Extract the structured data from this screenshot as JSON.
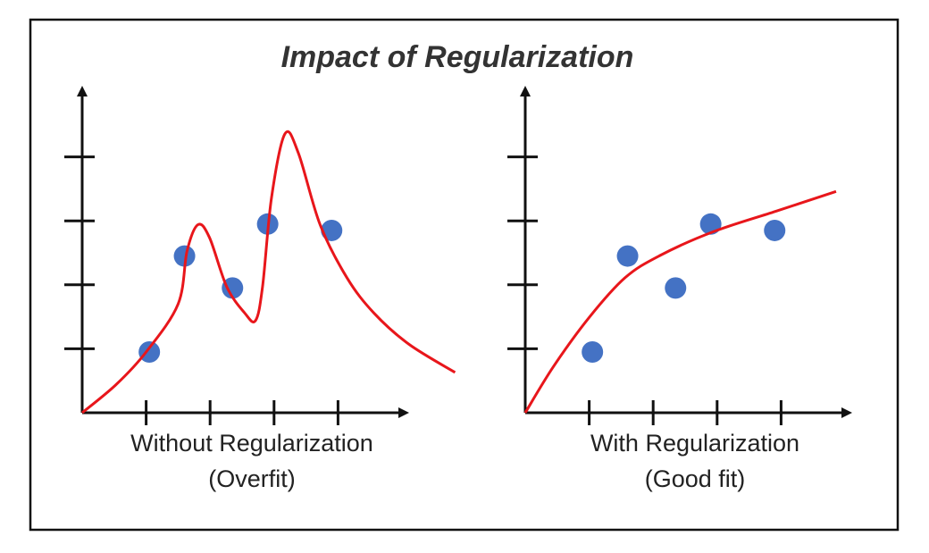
{
  "title": "Impact of Regularization",
  "chart_data": [
    {
      "type": "scatter",
      "xlabel": [
        "Without Regularization",
        "(Overfit)"
      ],
      "xlim": [
        0,
        5
      ],
      "ylim": [
        0,
        5
      ],
      "xticks": [
        1,
        2,
        3,
        4
      ],
      "yticks": [
        1,
        2,
        3,
        4
      ],
      "series": [
        {
          "type": "scatter",
          "color": "#4472c4",
          "x": [
            1.05,
            1.6,
            2.35,
            2.9,
            3.9
          ],
          "values": [
            0.95,
            2.45,
            1.95,
            2.95,
            2.85
          ]
        },
        {
          "type": "line",
          "color": "#e8161b",
          "x": [
            0,
            0.53,
            1.0,
            1.5,
            1.64,
            1.81,
            1.99,
            2.26,
            2.54,
            2.71,
            2.82,
            2.96,
            3.17,
            3.38,
            3.72,
            4.14,
            4.56,
            5.11,
            5.83
          ],
          "values": [
            0,
            0.44,
            0.95,
            1.7,
            2.53,
            2.94,
            2.74,
            1.97,
            1.56,
            1.44,
            1.97,
            3.36,
            4.36,
            4.06,
            2.94,
            2.11,
            1.56,
            1.07,
            0.63
          ]
        }
      ]
    },
    {
      "type": "scatter",
      "xlabel": [
        "With Regularization",
        "(Good fit)"
      ],
      "xlim": [
        0,
        5
      ],
      "ylim": [
        0,
        5
      ],
      "xticks": [
        1,
        2,
        3,
        4
      ],
      "yticks": [
        1,
        2,
        3,
        4
      ],
      "series": [
        {
          "type": "scatter",
          "color": "#4472c4",
          "x": [
            1.05,
            1.6,
            2.35,
            2.9,
            3.9
          ],
          "values": [
            0.95,
            2.45,
            1.95,
            2.95,
            2.85
          ]
        },
        {
          "type": "line",
          "color": "#e8161b",
          "x": [
            0,
            0.44,
            1.0,
            1.56,
            2.11,
            2.94,
            3.92,
            4.86
          ],
          "values": [
            0,
            0.72,
            1.49,
            2.11,
            2.46,
            2.83,
            3.15,
            3.46
          ]
        }
      ]
    }
  ]
}
